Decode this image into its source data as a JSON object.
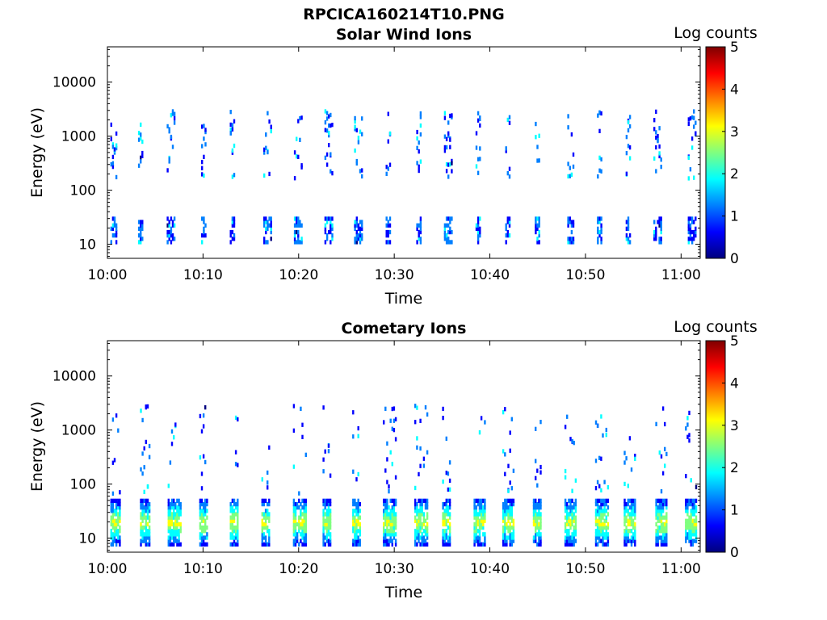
{
  "figure": {
    "title": "RPCICA160214T10.PNG"
  },
  "colormap": [
    "#00007f",
    "#0000ff",
    "#007fff",
    "#00ffff",
    "#7fff7f",
    "#ffff00",
    "#ff7f00",
    "#ff0000",
    "#7f0000"
  ],
  "chart_data": [
    {
      "type": "heatmap",
      "title": "Solar Wind Ions",
      "xlabel": "Time",
      "ylabel": "Energy (eV)",
      "y_scale": "log",
      "ylim": [
        5.5,
        45000
      ],
      "xlim": [
        "10:00",
        "11:02"
      ],
      "x_ticks": [
        "10:00",
        "10:10",
        "10:20",
        "10:30",
        "10:40",
        "10:50",
        "11:00"
      ],
      "y_ticks": [
        "10",
        "100",
        "1000",
        "10000"
      ],
      "colorbar": {
        "label": "Log counts",
        "range": [
          0,
          5
        ],
        "ticks": [
          "0",
          "1",
          "2",
          "3",
          "4",
          "5"
        ]
      },
      "bursts_time_min": [
        0.3,
        3.2,
        6.2,
        9.8,
        12.8,
        16.3,
        19.5,
        22.7,
        25.8,
        29.1,
        32.3,
        35.2,
        38.5,
        41.6,
        44.7,
        48.1,
        51.2,
        54.2,
        57.1,
        60.7
      ],
      "low_band_eV": [
        10,
        30
      ],
      "high_band_eV": [
        150,
        2700
      ]
    },
    {
      "type": "heatmap",
      "title": "Cometary Ions",
      "xlabel": "Time",
      "ylabel": "Energy (eV)",
      "y_scale": "log",
      "ylim": [
        5.5,
        45000
      ],
      "xlim": [
        "10:00",
        "11:02"
      ],
      "x_ticks": [
        "10:00",
        "10:10",
        "10:20",
        "10:30",
        "10:40",
        "10:50",
        "11:00"
      ],
      "y_ticks": [
        "10",
        "100",
        "1000",
        "10000"
      ],
      "colorbar": {
        "label": "Log counts",
        "range": [
          0,
          5
        ],
        "ticks": [
          "0",
          "1",
          "2",
          "3",
          "4",
          "5"
        ]
      },
      "bursts_time_min": [
        0.3,
        3.4,
        6.3,
        9.6,
        12.8,
        16.1,
        19.4,
        22.5,
        25.6,
        28.8,
        32.1,
        35.0,
        38.3,
        41.3,
        44.5,
        47.8,
        51.0,
        54.0,
        57.3,
        60.4
      ],
      "low_band_eV": [
        7,
        45
      ],
      "high_band_eV": [
        60,
        2600
      ]
    }
  ]
}
